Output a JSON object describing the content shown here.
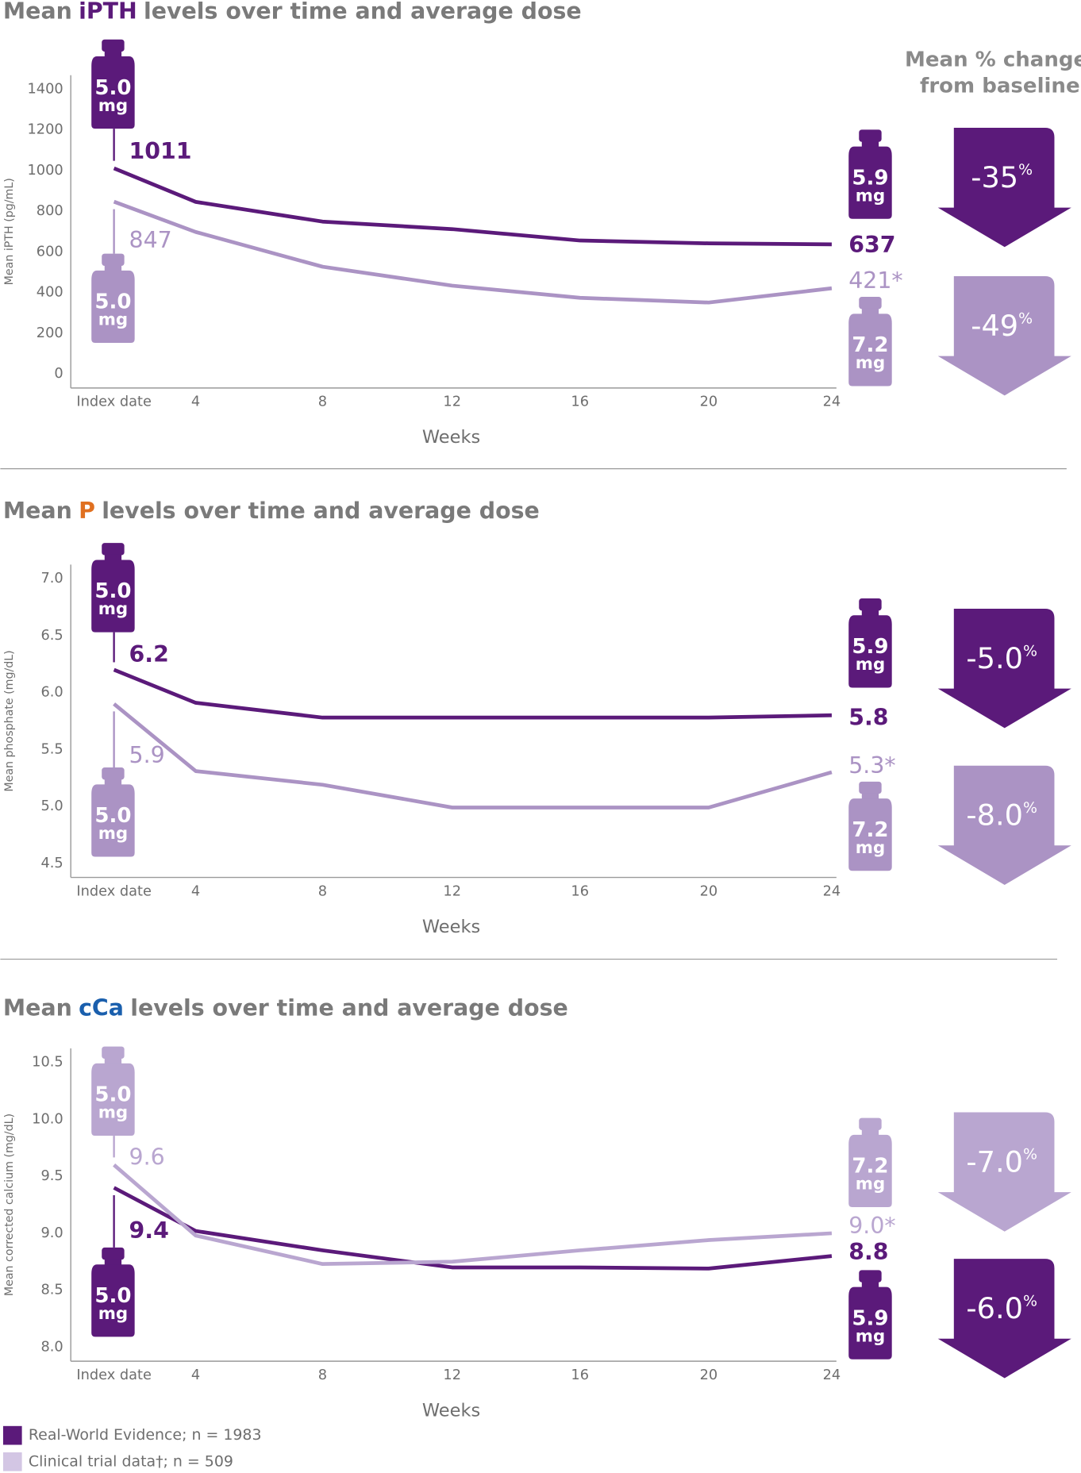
{
  "change_header": [
    "Mean % change",
    "from baseline"
  ],
  "legend": [
    {
      "name": "Real-World Evidence; n = 1983",
      "color": "#5b1a7a"
    },
    {
      "name": "Clinical trial data†; n = 509",
      "color": "#d3c6e4"
    }
  ],
  "chart_data": [
    {
      "type": "line",
      "title": [
        "Mean",
        "iPTH",
        "levels over time and average dose"
      ],
      "title_color": "#5b1a7a",
      "ylabel": "Mean iPTH (pg/mL)",
      "xlabel": "Weeks",
      "dose_unit": "mg",
      "categories": [
        "Index date",
        "4",
        "8",
        "12",
        "16",
        "20",
        "24"
      ],
      "ylim": [
        0,
        1400
      ],
      "yticks": [
        0,
        200,
        400,
        600,
        800,
        1000,
        1200,
        1400
      ],
      "series": [
        {
          "color": "#5b1a7a",
          "values": [
            1011,
            846,
            749,
            712,
            656,
            642,
            637
          ],
          "value_labels": [
            "1011",
            null,
            null,
            null,
            null,
            null,
            "637"
          ],
          "doses": [
            "5.0",
            "5.9"
          ],
          "change": "-35",
          "change_unit": "%"
        },
        {
          "color": "#ab93c4",
          "values": [
            847,
            698,
            527,
            434,
            374,
            351,
            421
          ],
          "value_labels": [
            "847",
            null,
            null,
            null,
            null,
            null,
            "421*"
          ],
          "doses": [
            "5.0",
            "7.2"
          ],
          "change": "-49",
          "change_unit": "%"
        }
      ]
    },
    {
      "type": "line",
      "title": [
        "Mean",
        "P",
        "levels over time and average dose"
      ],
      "title_color": "#e07020",
      "ylabel": "Mean phosphate (mg/dL)",
      "xlabel": "Weeks",
      "dose_unit": "mg",
      "categories": [
        "Index date",
        "4",
        "8",
        "12",
        "16",
        "20",
        "24"
      ],
      "ylim": [
        4.5,
        7.0
      ],
      "yticks": [
        4.5,
        {
          "value": 5,
          "label": "5.0"
        },
        5.5,
        {
          "value": 6,
          "label": "6.0"
        },
        6.5,
        {
          "value": 7,
          "label": "7.0"
        }
      ],
      "series": [
        {
          "color": "#5b1a7a",
          "values": [
            6.2,
            5.91,
            5.78,
            5.78,
            5.78,
            5.78,
            5.8
          ],
          "value_labels": [
            "6.2",
            null,
            null,
            null,
            null,
            null,
            "5.8"
          ],
          "doses": [
            "5.0",
            "5.9"
          ],
          "change": "-5.0",
          "change_unit": "%"
        },
        {
          "color": "#ab93c4",
          "values": [
            5.9,
            5.31,
            5.19,
            4.99,
            4.99,
            4.99,
            5.3
          ],
          "value_labels": [
            "5.9",
            null,
            null,
            null,
            null,
            null,
            "5.3*"
          ],
          "doses": [
            "5.0",
            "7.2"
          ],
          "change": "-8.0",
          "change_unit": "%"
        }
      ]
    },
    {
      "type": "line",
      "title": [
        "Mean",
        "cCa",
        "levels over time and average dose"
      ],
      "title_color": "#1a5fad",
      "ylabel": "Mean corrected calcium (mg/dL)",
      "xlabel": "Weeks",
      "dose_unit": "mg",
      "categories": [
        "Index date",
        "4",
        "8",
        "12",
        "16",
        "20",
        "24"
      ],
      "ylim": [
        8.0,
        10.5
      ],
      "yticks": [
        {
          "value": 8,
          "label": "8.0"
        },
        8.5,
        {
          "value": 9,
          "label": "9.0"
        },
        9.5,
        {
          "value": 10,
          "label": "10.0"
        },
        10.5
      ],
      "series": [
        {
          "color": "#5b1a7a",
          "values": [
            9.4,
            9.02,
            8.85,
            8.7,
            8.7,
            8.69,
            8.8
          ],
          "value_labels": [
            "9.4",
            null,
            null,
            null,
            null,
            null,
            "8.8"
          ],
          "doses": [
            "5.0",
            "5.9"
          ],
          "change": "-6.0",
          "change_unit": "%"
        },
        {
          "color": "#b9a6d0",
          "values": [
            9.6,
            8.98,
            8.73,
            8.75,
            8.85,
            8.94,
            9.0
          ],
          "value_labels": [
            "9.6",
            null,
            null,
            null,
            null,
            null,
            "9.0*"
          ],
          "doses": [
            "5.0",
            "7.2"
          ],
          "change": "-7.0",
          "change_unit": "%"
        }
      ]
    }
  ]
}
